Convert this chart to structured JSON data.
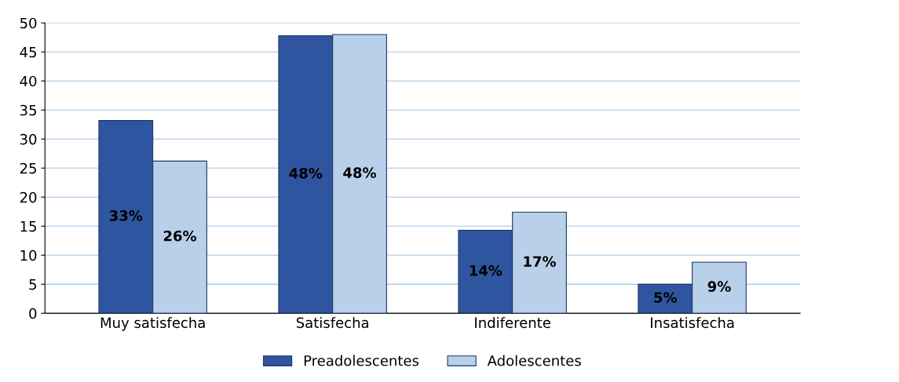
{
  "chart_data": {
    "type": "bar",
    "categories": [
      "Muy satisfecha",
      "Satisfecha",
      "Indiferente",
      "Insatisfecha"
    ],
    "series": [
      {
        "name": "Preadolescentes",
        "color": "#2f55a0",
        "values": [
          33.2,
          47.8,
          14.3,
          5.0
        ],
        "value_labels": [
          "33%",
          "48%",
          "14%",
          "5%"
        ]
      },
      {
        "name": "Adolescentes",
        "color": "#b8d0ea",
        "values": [
          26.2,
          48.0,
          17.4,
          8.8
        ],
        "value_labels": [
          "26%",
          "48%",
          "17%",
          "9%"
        ]
      }
    ],
    "ylim": [
      0,
      50
    ],
    "yticks": [
      0,
      5,
      10,
      15,
      20,
      25,
      30,
      35,
      40,
      45,
      50
    ],
    "grid": "y",
    "legend": "bottom"
  }
}
